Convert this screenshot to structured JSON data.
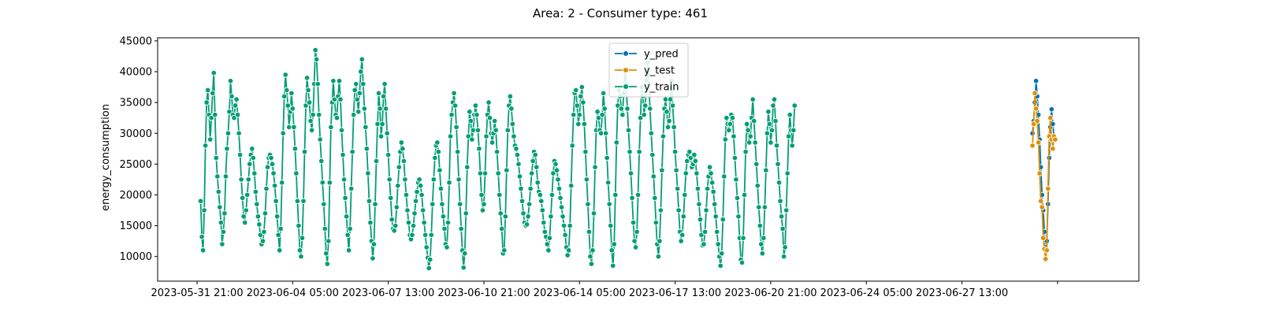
{
  "chart_data": {
    "type": "line",
    "title": "Area: 2 - Consumer type: 461",
    "xlabel": "",
    "ylabel": "energy_consumption",
    "ylim": [
      6000,
      45500
    ],
    "yticks": [
      10000,
      15000,
      20000,
      25000,
      30000,
      35000,
      40000,
      45000
    ],
    "xlim": [
      "2023-05-30T12:00",
      "2023-07-03T17:00"
    ],
    "xticks": [
      {
        "value": "2023-05-31T21:00",
        "label": "2023-05-31 21:00"
      },
      {
        "value": "2023-06-04T05:00",
        "label": "2023-06-04 05:00"
      },
      {
        "value": "2023-06-07T13:00",
        "label": "2023-06-07 13:00"
      },
      {
        "value": "2023-06-10T21:00",
        "label": "2023-06-10 21:00"
      },
      {
        "value": "2023-06-14T05:00",
        "label": "2023-06-14 05:00"
      },
      {
        "value": "2023-06-17T13:00",
        "label": "2023-06-17 13:00"
      },
      {
        "value": "2023-06-20T21:00",
        "label": "2023-06-20 21:00"
      },
      {
        "value": "2023-06-24T05:00",
        "label": "2023-06-24 05:00"
      },
      {
        "value": "2023-06-27T13:00",
        "label": "2023-06-27 13:00"
      },
      {
        "value": "2023-06-30T21:00",
        "label": ""
      }
    ],
    "legend": {
      "position": "top-center"
    },
    "grid": false,
    "series": [
      {
        "name": "y_pred",
        "color": "#0173b2",
        "marker": "circle",
        "start": "2023-06-30T00:00",
        "step_hours": 1,
        "values": [
          30000,
          32000,
          35000,
          38500,
          36000,
          33000,
          29000,
          24500,
          20000,
          17500,
          14000,
          11500,
          12500,
          18500,
          26000,
          31000,
          33900,
          31500,
          29500,
          29000
        ]
      },
      {
        "name": "y_test",
        "color": "#de8f05",
        "marker": "circle",
        "start": "2023-06-30T00:00",
        "step_hours": 1,
        "values": [
          28000,
          31500,
          36500,
          34000,
          32000,
          28500,
          23500,
          19000,
          18000,
          13000,
          11200,
          9600,
          11000,
          21000,
          29500,
          32500,
          29000,
          27500,
          29500,
          29000
        ]
      },
      {
        "name": "y_train",
        "color": "#029e73",
        "marker": "circle",
        "start": "2023-06-01T00:00",
        "step_hours": 1,
        "values": [
          19000,
          13200,
          11000,
          17500,
          28000,
          35000,
          37000,
          33000,
          29000,
          32500,
          36500,
          39800,
          33000,
          26000,
          23000,
          20500,
          18000,
          15500,
          12000,
          14000,
          17000,
          23000,
          27500,
          30000,
          33500,
          38500,
          36000,
          33000,
          32500,
          34500,
          35500,
          33000,
          30000,
          26500,
          22500,
          19500,
          16500,
          15500,
          17500,
          20000,
          22500,
          25000,
          26500,
          27500,
          26000,
          23500,
          20500,
          18500,
          16500,
          15200,
          13500,
          12000,
          12500,
          14000,
          17000,
          21000,
          24500,
          26000,
          26500,
          26000,
          25000,
          23500,
          21500,
          19000,
          16500,
          13500,
          11000,
          14500,
          22000,
          30000,
          36000,
          39500,
          37000,
          34500,
          31000,
          33500,
          36500,
          34000,
          31000,
          27500,
          23500,
          19000,
          15000,
          11000,
          10000,
          13000,
          19000,
          27000,
          34500,
          39000,
          37000,
          35000,
          32000,
          30500,
          33000,
          38000,
          43500,
          42000,
          38000,
          33000,
          29000,
          25500,
          22000,
          18500,
          14500,
          10500,
          8800,
          12500,
          22000,
          31000,
          35000,
          38500,
          35500,
          33000,
          32500,
          36000,
          38500,
          35500,
          30500,
          26500,
          22500,
          19500,
          16500,
          13500,
          11000,
          14500,
          21000,
          27000,
          33000,
          37000,
          38000,
          35500,
          33500,
          36500,
          40000,
          42000,
          38000,
          34000,
          31000,
          27500,
          23500,
          19000,
          15500,
          12500,
          9700,
          12000,
          18500,
          25500,
          31500,
          36500,
          34000,
          29500,
          31500,
          36000,
          38000,
          34000,
          30000,
          26500,
          22500,
          19500,
          16000,
          14500,
          14200,
          15000,
          18000,
          21500,
          24500,
          27000,
          28500,
          27500,
          25500,
          22500,
          20000,
          17500,
          15500,
          13500,
          12800,
          13500,
          15000,
          17000,
          19000,
          20500,
          22000,
          22500,
          21500,
          20000,
          17500,
          15500,
          13500,
          11500,
          9800,
          8100,
          9500,
          13500,
          18500,
          22500,
          26000,
          28000,
          28500,
          27000,
          24000,
          21000,
          18500,
          16500,
          14500,
          12000,
          11500,
          15500,
          22000,
          29500,
          33000,
          35000,
          36500,
          34500,
          31000,
          27000,
          22500,
          18500,
          14500,
          11000,
          8200,
          10500,
          17000,
          24500,
          29500,
          33500,
          32000,
          29000,
          30500,
          33000,
          34500,
          33000,
          30500,
          27500,
          23500,
          20000,
          17500,
          18500,
          23500,
          29500,
          33000,
          35000,
          32500,
          30000,
          28500,
          30000,
          32000,
          30500,
          27000,
          23500,
          20000,
          17000,
          14500,
          10500,
          11000,
          16500,
          24000,
          30500,
          34500,
          36000,
          34000,
          31500,
          29500,
          28000,
          27500,
          26500,
          25000,
          23000,
          21000,
          19000,
          17000,
          15500,
          15000,
          15200,
          16500,
          18500,
          21000,
          23500,
          25500,
          27000,
          26500,
          24500,
          22000,
          20500,
          20000,
          19000,
          17500,
          15500,
          14000,
          13200,
          12000,
          11000,
          13000,
          16500,
          20000,
          23500,
          25500,
          25000,
          24000,
          22500,
          21000,
          19500,
          18000,
          16500,
          15000,
          13500,
          11500,
          10200,
          11000,
          15000,
          21500,
          28000,
          33000,
          36500,
          37000,
          34500,
          31500,
          33000,
          36000,
          37500,
          35000,
          31500,
          27000,
          22500,
          18500,
          14000,
          10000,
          8800,
          11000,
          17000,
          24500,
          30500,
          33500,
          32500,
          30500,
          30000,
          33000,
          36500,
          34000,
          30000,
          26000,
          22000,
          18500,
          15000,
          11000,
          8500,
          12000,
          20000,
          28500,
          34500,
          37000,
          36000,
          34000,
          33000,
          36500,
          40500,
          38000,
          34000,
          30500,
          27000,
          23500,
          19500,
          15500,
          12500,
          11500,
          14000,
          20000,
          27000,
          32500,
          37500,
          36000,
          33000,
          34500,
          38500,
          41500,
          38000,
          34000,
          30000,
          26500,
          23000,
          19500,
          15500,
          12000,
          10000,
          12500,
          17500,
          24000,
          29500,
          34000,
          35500,
          33500,
          31000,
          32000,
          35500,
          38500,
          34500,
          31000,
          27000,
          24000,
          21000,
          17500,
          14000,
          12500,
          13500,
          16500,
          20000,
          23500,
          25500,
          26500,
          27000,
          26000,
          24500,
          25000,
          26500,
          25500,
          23500,
          21000,
          18500,
          16000,
          13500,
          11800,
          12000,
          14000,
          17500,
          21000,
          23000,
          24500,
          23500,
          22000,
          20500,
          18500,
          16500,
          14000,
          12000,
          10000,
          8500,
          10500,
          16000,
          23000,
          29000,
          32500,
          31500,
          30500,
          31500,
          33000,
          32500,
          29500,
          26000,
          22500,
          19500,
          16500,
          13000,
          9500,
          9000,
          13000,
          20000,
          27000,
          31500,
          30500,
          28500,
          29500,
          32500,
          35500,
          32000,
          28500,
          25000,
          21500,
          18000,
          15000,
          12000,
          10500,
          13000,
          18000,
          24000,
          30000,
          33500,
          31500,
          28500,
          30500,
          34500,
          35500,
          32000,
          28000,
          25000,
          22000,
          19000,
          16500,
          14500,
          10000,
          11500,
          17500,
          23500,
          29500,
          33000,
          30500,
          28000,
          30500,
          34500
        ]
      }
    ]
  }
}
